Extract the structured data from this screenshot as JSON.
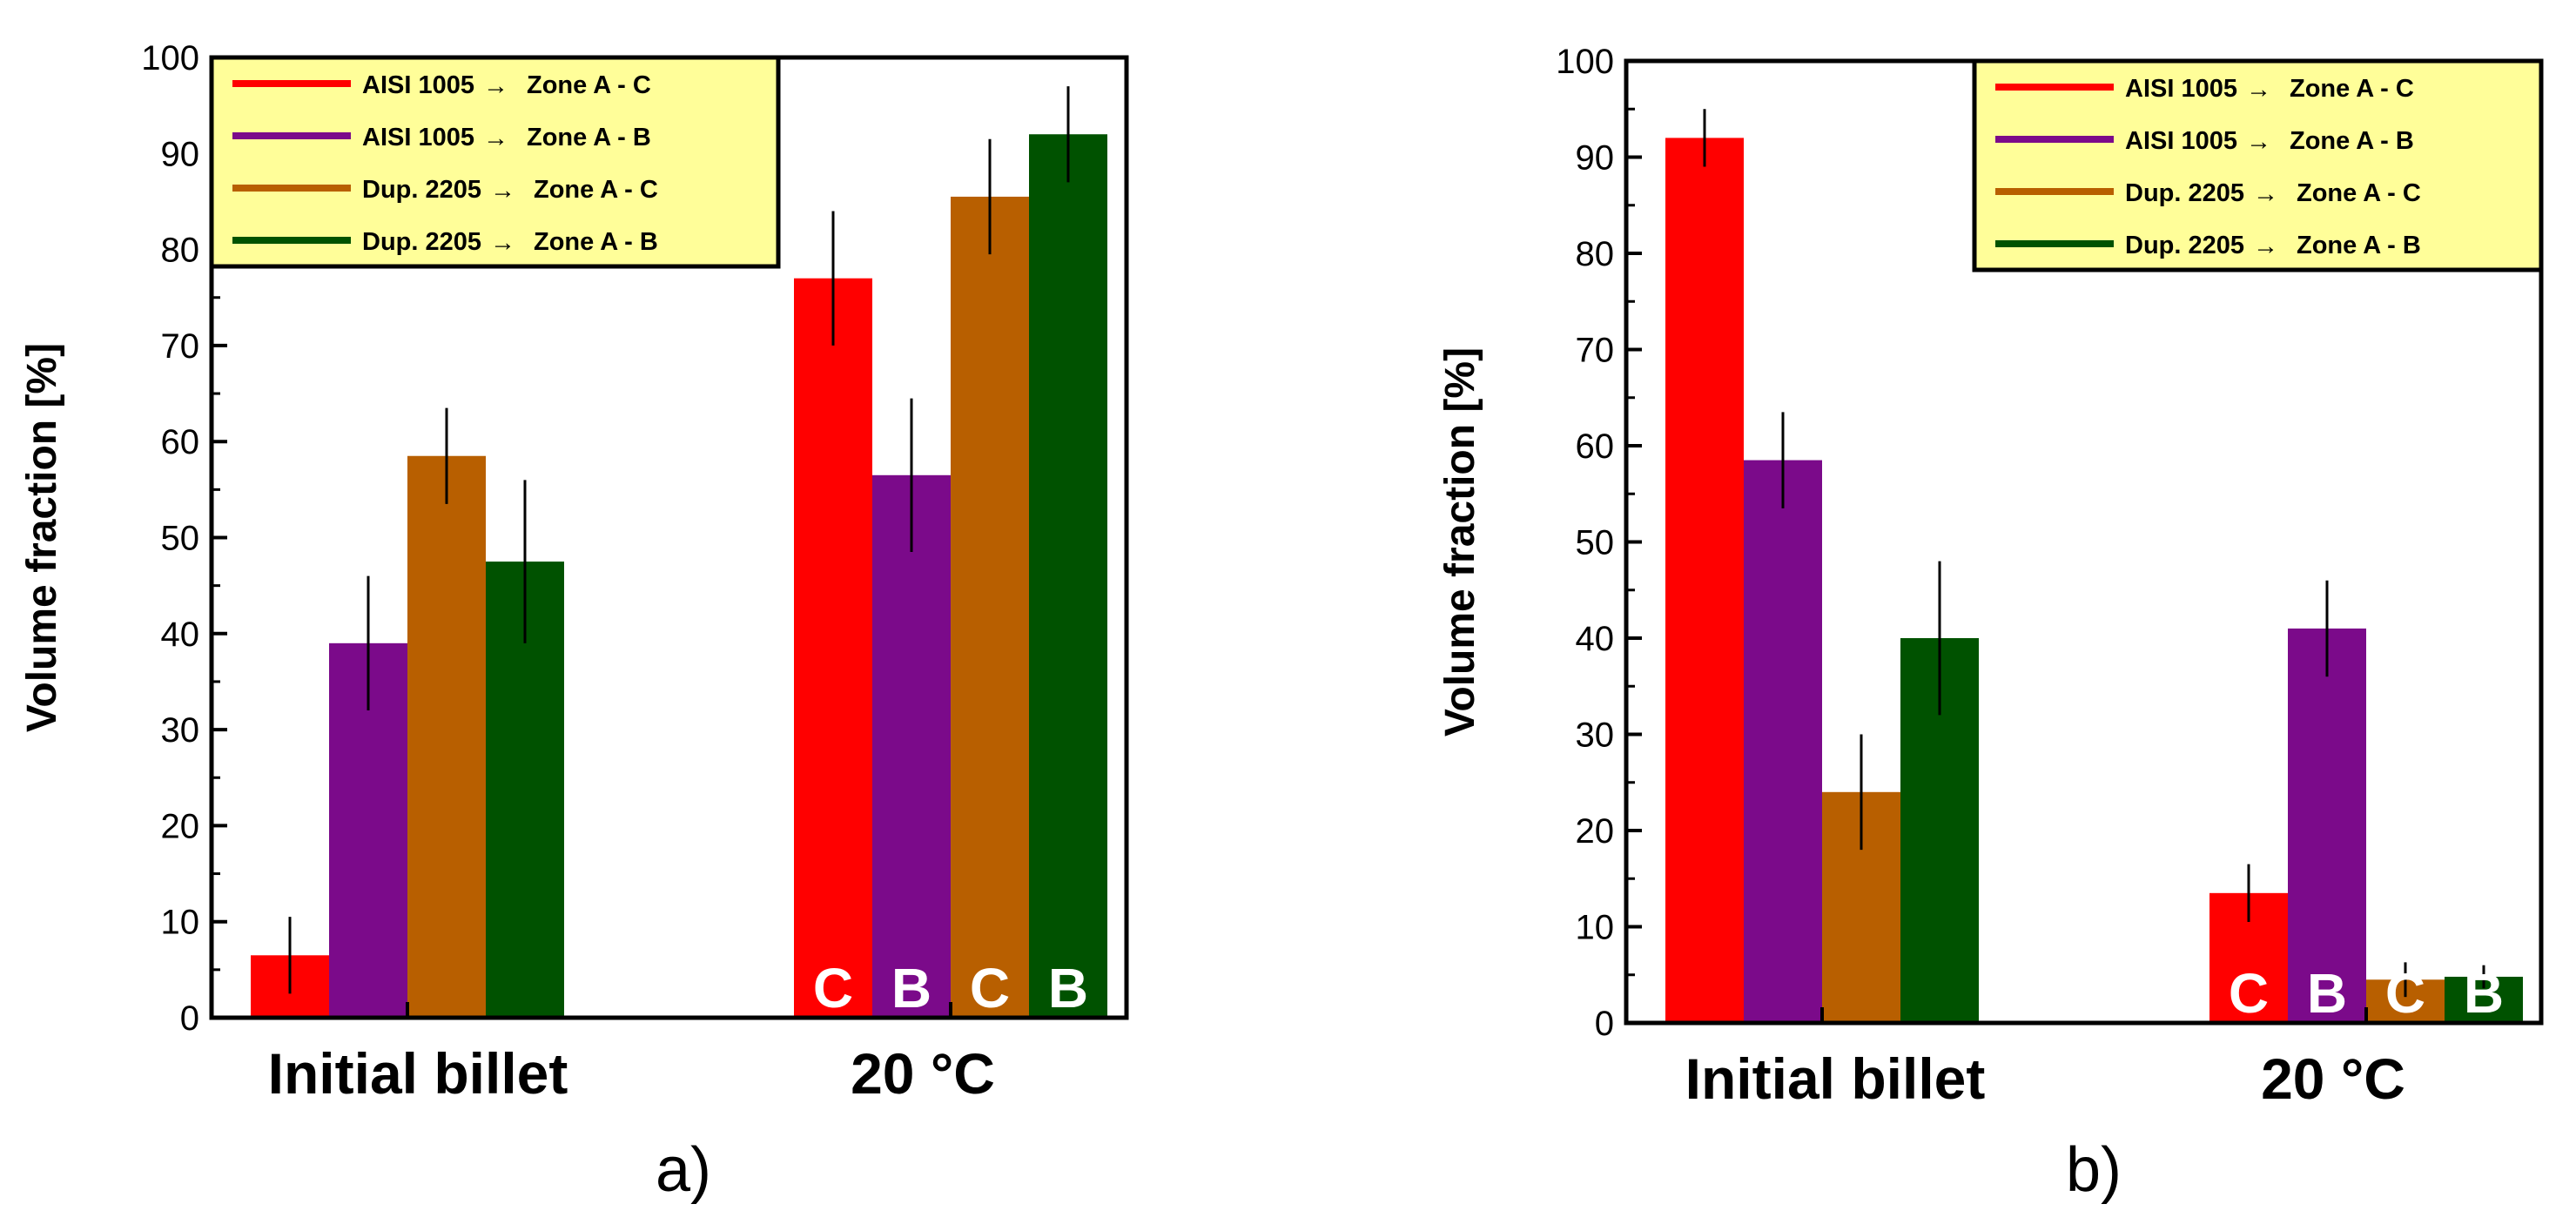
{
  "chart_data": [
    {
      "type": "bar",
      "panel_label": "a)",
      "categories": [
        "Initial billet",
        "20 °C"
      ],
      "ylabel": "Volume fraction [%]",
      "ylim": [
        0,
        100
      ],
      "yticks": [
        0,
        10,
        20,
        30,
        40,
        50,
        60,
        70,
        80,
        90,
        100
      ],
      "yticks_text": [
        "0",
        "10",
        "20",
        "30",
        "40",
        "50",
        "60",
        "70",
        "80",
        "90",
        "100"
      ],
      "legend_position": "top-left",
      "series": [
        {
          "name": "AISI 1005",
          "zone": "Zone A - C",
          "color": "#ff0000",
          "values": [
            6.5,
            77
          ],
          "errors": [
            4,
            7
          ],
          "letter": "C"
        },
        {
          "name": "AISI 1005",
          "zone": "Zone A - B",
          "color": "#7b0a8a",
          "values": [
            39,
            56.5
          ],
          "errors": [
            7,
            8
          ],
          "letter": "B"
        },
        {
          "name": "Dup. 2205",
          "zone": "Zone A - C",
          "color": "#b85f00",
          "values": [
            58.5,
            85.5
          ],
          "errors": [
            5,
            6
          ],
          "letter": "C"
        },
        {
          "name": "Dup. 2205",
          "zone": "Zone A - B",
          "color": "#005200",
          "values": [
            47.5,
            92
          ],
          "errors": [
            8.5,
            5
          ],
          "letter": "B"
        }
      ]
    },
    {
      "type": "bar",
      "panel_label": "b)",
      "categories": [
        "Initial billet",
        "20 °C"
      ],
      "ylabel": "Volume fraction [%]",
      "ylim": [
        0,
        100
      ],
      "yticks": [
        0,
        10,
        20,
        30,
        40,
        50,
        60,
        70,
        80,
        90,
        100
      ],
      "yticks_text": [
        "0",
        "10",
        "20",
        "30",
        "40",
        "50",
        "60",
        "70",
        "80",
        "90",
        "100"
      ],
      "legend_position": "top-right",
      "series": [
        {
          "name": "AISI 1005",
          "zone": "Zone A - C",
          "color": "#ff0000",
          "values": [
            92,
            13.5
          ],
          "errors": [
            3,
            3
          ],
          "letter": "C"
        },
        {
          "name": "AISI 1005",
          "zone": "Zone A - B",
          "color": "#7b0a8a",
          "values": [
            58.5,
            41
          ],
          "errors": [
            5,
            5
          ],
          "letter": "B"
        },
        {
          "name": "Dup. 2205",
          "zone": "Zone A - C",
          "color": "#b85f00",
          "values": [
            24,
            4.5
          ],
          "errors": [
            6,
            1.8
          ],
          "letter": "C"
        },
        {
          "name": "Dup. 2205",
          "zone": "Zone A - B",
          "color": "#005200",
          "values": [
            40,
            4.8
          ],
          "errors": [
            8,
            1.2
          ],
          "letter": "B"
        }
      ]
    }
  ],
  "legend_arrow": "→",
  "legend_bg": "#fffe99"
}
